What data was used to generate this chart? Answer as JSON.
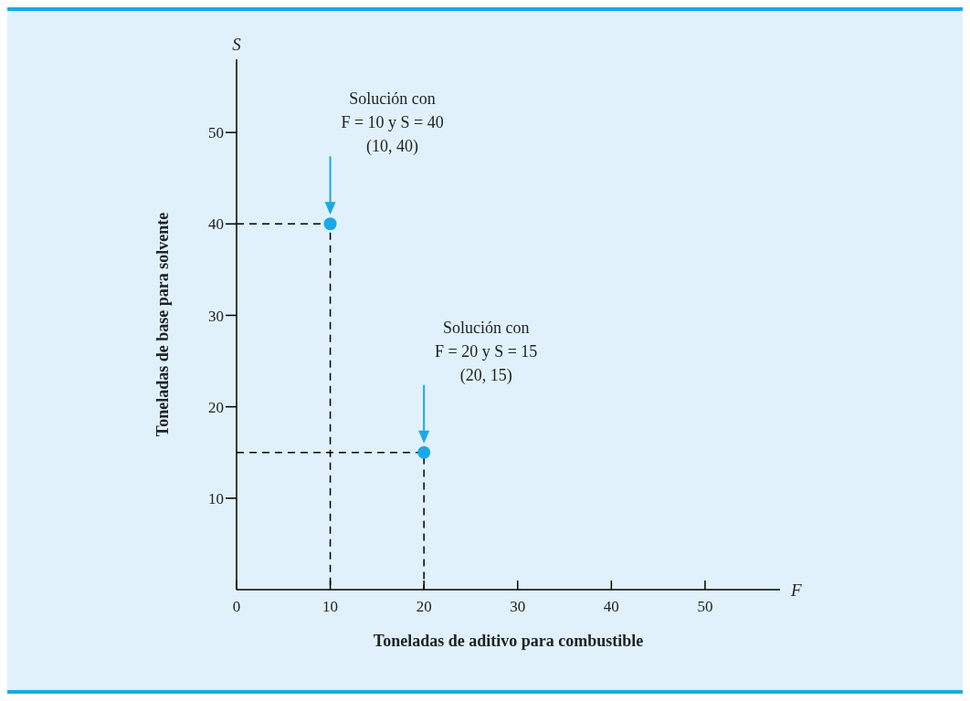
{
  "chart_data": {
    "type": "scatter",
    "xlabel": "Toneladas de aditivo para combustible",
    "ylabel": "Toneladas de base para solvente",
    "xlim": [
      0,
      58
    ],
    "ylim": [
      0,
      58
    ],
    "xticks": [
      0,
      10,
      20,
      30,
      40,
      50
    ],
    "yticks": [
      10,
      20,
      30,
      40,
      50
    ],
    "grid": false,
    "marker": "circle",
    "series": [
      {
        "type": "line",
        "color": "#000000",
        "line_style": "dashed",
        "marker": "none",
        "x": [
          0,
          10,
          10
        ],
        "values": [
          40,
          40,
          0
        ]
      },
      {
        "type": "line",
        "color": "#000000",
        "line_style": "dashed",
        "marker": "none",
        "x": [
          0,
          20,
          20
        ],
        "values": [
          15,
          15,
          0
        ]
      },
      {
        "color": "#1ba8e6",
        "x": [
          10,
          20
        ],
        "values": [
          40,
          15
        ]
      }
    ],
    "annotations": [
      "F",
      "S",
      "Solución con\nF = 10 y S = 40\n(10, 40)",
      "Solución con\nF = 20 y S = 15\n(20, 15)"
    ]
  }
}
